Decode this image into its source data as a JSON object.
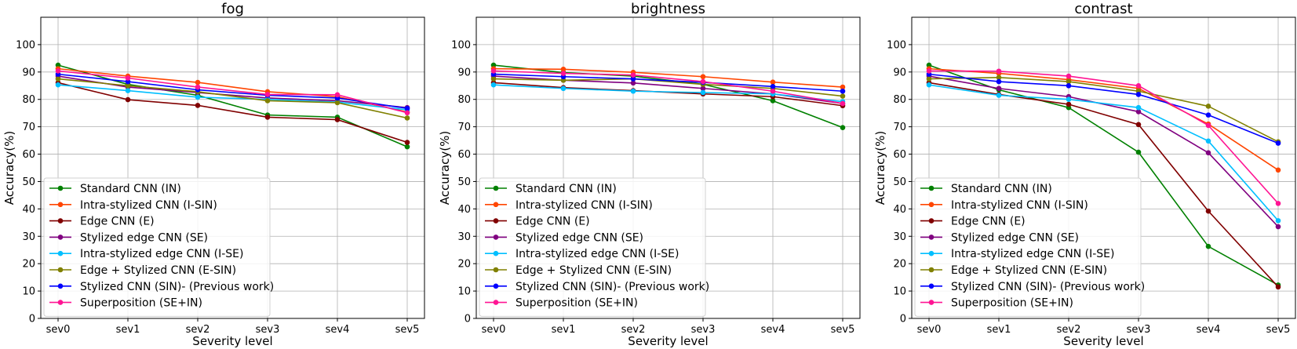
{
  "chart_data": [
    {
      "type": "line",
      "title": "fog",
      "xlabel": "Severity level",
      "ylabel": "Accuracy(%)",
      "categories": [
        "sev0",
        "sev1",
        "sev2",
        "sev3",
        "sev4",
        "sev5"
      ],
      "yticks": [
        "0",
        "10",
        "20",
        "30",
        "40",
        "50",
        "60",
        "70",
        "80",
        "90",
        "100"
      ],
      "ylim": [
        0,
        110
      ],
      "grid": true,
      "legend_position": "lower-left",
      "series": [
        {
          "name": "Standard CNN (IN)",
          "color": "#008000",
          "values": [
            92.5,
            85.5,
            81.5,
            74.3,
            73.5,
            62.7
          ]
        },
        {
          "name": "Intra-stylized CNN (I-SIN)",
          "color": "#ff4500",
          "values": [
            91.2,
            88.5,
            86.2,
            82.8,
            81.0,
            75.4
          ]
        },
        {
          "name": "Edge CNN (E)",
          "color": "#800000",
          "values": [
            86.1,
            79.9,
            77.8,
            73.5,
            72.6,
            64.3
          ]
        },
        {
          "name": "Stylized edge CNN (SE)",
          "color": "#800080",
          "values": [
            88.5,
            84.5,
            82.5,
            80.5,
            79.5,
            77.0
          ]
        },
        {
          "name": "Intra-stylized edge CNN (I-SE)",
          "color": "#00bfff",
          "values": [
            85.3,
            83.2,
            80.8,
            80.0,
            79.0,
            76.2
          ]
        },
        {
          "name": "Edge + Stylized CNN (E-SIN)",
          "color": "#808000",
          "values": [
            87.5,
            85.0,
            82.8,
            79.5,
            78.8,
            73.2
          ]
        },
        {
          "name": "Stylized CNN (SIN)- (Previous work)",
          "color": "#0000ff",
          "values": [
            89.2,
            86.5,
            83.5,
            81.5,
            80.5,
            76.7
          ]
        },
        {
          "name": "Superposition (SE+IN)",
          "color": "#ff1493",
          "values": [
            90.4,
            87.8,
            84.5,
            81.8,
            81.7,
            75.1
          ]
        }
      ]
    },
    {
      "type": "line",
      "title": "brightness",
      "xlabel": "Severity level",
      "ylabel": "Accuracy(%)",
      "categories": [
        "sev0",
        "sev1",
        "sev2",
        "sev3",
        "sev4",
        "sev5"
      ],
      "yticks": [
        "0",
        "10",
        "20",
        "30",
        "40",
        "50",
        "60",
        "70",
        "80",
        "90",
        "100"
      ],
      "ylim": [
        0,
        110
      ],
      "grid": true,
      "legend_position": "lower-left",
      "series": [
        {
          "name": "Standard CNN (IN)",
          "color": "#008000",
          "values": [
            92.5,
            89.8,
            88.5,
            85.5,
            79.5,
            69.7
          ]
        },
        {
          "name": "Intra-stylized CNN (I-SIN)",
          "color": "#ff4500",
          "values": [
            91.2,
            91.0,
            89.9,
            88.3,
            86.3,
            84.5
          ]
        },
        {
          "name": "Edge CNN (E)",
          "color": "#800000",
          "values": [
            86.1,
            84.3,
            83.2,
            82.0,
            81.0,
            77.7
          ]
        },
        {
          "name": "Stylized edge CNN (SE)",
          "color": "#800080",
          "values": [
            88.5,
            87.0,
            86.0,
            84.0,
            82.0,
            78.5
          ]
        },
        {
          "name": "Intra-stylized edge CNN (I-SE)",
          "color": "#00bfff",
          "values": [
            85.3,
            84.0,
            83.0,
            82.5,
            82.0,
            79.2
          ]
        },
        {
          "name": "Edge + Stylized CNN (E-SIN)",
          "color": "#808000",
          "values": [
            87.5,
            87.0,
            87.5,
            85.5,
            84.0,
            81.2
          ]
        },
        {
          "name": "Stylized CNN (SIN)- (Previous work)",
          "color": "#0000ff",
          "values": [
            89.2,
            88.3,
            87.5,
            86.2,
            84.7,
            83.0
          ]
        },
        {
          "name": "Superposition (SE+IN)",
          "color": "#ff1493",
          "values": [
            90.4,
            89.5,
            88.9,
            86.5,
            83.0,
            78.5
          ]
        }
      ]
    },
    {
      "type": "line",
      "title": "contrast",
      "xlabel": "Severity level",
      "ylabel": "Accuracy(%)",
      "categories": [
        "sev0",
        "sev1",
        "sev2",
        "sev3",
        "sev4",
        "sev5"
      ],
      "yticks": [
        "0",
        "10",
        "20",
        "30",
        "40",
        "50",
        "60",
        "70",
        "80",
        "90",
        "100"
      ],
      "ylim": [
        0,
        110
      ],
      "grid": true,
      "legend_position": "lower-left",
      "series": [
        {
          "name": "Standard CNN (IN)",
          "color": "#008000",
          "values": [
            92.5,
            83.5,
            77.0,
            60.7,
            26.3,
            12.2
          ]
        },
        {
          "name": "Intra-stylized CNN (I-SIN)",
          "color": "#ff4500",
          "values": [
            91.2,
            89.5,
            87.2,
            84.0,
            71.0,
            54.2
          ]
        },
        {
          "name": "Edge CNN (E)",
          "color": "#800000",
          "values": [
            86.1,
            81.8,
            78.2,
            70.8,
            39.2,
            11.5
          ]
        },
        {
          "name": "Stylized edge CNN (SE)",
          "color": "#800080",
          "values": [
            88.5,
            84.0,
            81.0,
            75.5,
            60.5,
            33.5
          ]
        },
        {
          "name": "Intra-stylized edge CNN (I-SE)",
          "color": "#00bfff",
          "values": [
            85.3,
            81.5,
            80.0,
            77.0,
            64.8,
            35.7
          ]
        },
        {
          "name": "Edge + Stylized CNN (E-SIN)",
          "color": "#808000",
          "values": [
            87.5,
            88.0,
            86.5,
            83.0,
            77.5,
            64.5
          ]
        },
        {
          "name": "Stylized CNN (SIN)- (Previous work)",
          "color": "#0000ff",
          "values": [
            89.2,
            86.5,
            85.0,
            81.8,
            74.3,
            64.0
          ]
        },
        {
          "name": "Superposition (SE+IN)",
          "color": "#ff1493",
          "values": [
            90.4,
            90.3,
            88.5,
            85.0,
            70.5,
            42.0
          ]
        }
      ]
    }
  ]
}
